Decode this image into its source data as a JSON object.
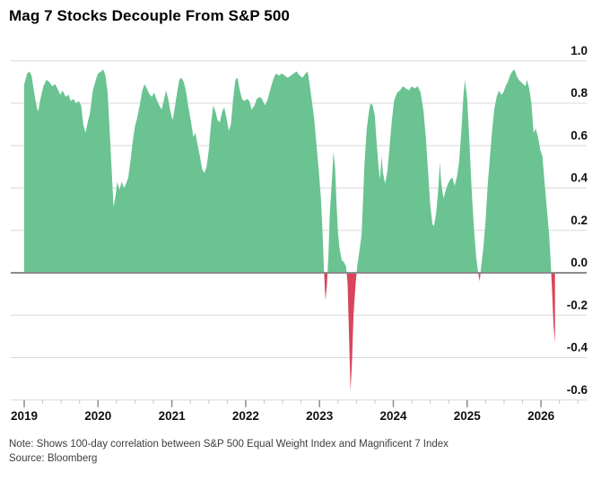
{
  "header": {
    "title": "Mag 7 Stocks Decouple From S&P 500"
  },
  "footer": {
    "note": "Note: Shows 100-day correlation between S&P 500 Equal Weight Index and Magnificent 7 Index",
    "source": "Source: Bloomberg"
  },
  "colors": {
    "positive_fill": "#6ac391",
    "negative_fill": "#d9455a",
    "gridline": "#d9d9d9",
    "zero_line": "#8b8b8b",
    "tick_major": "#8b8b8b",
    "tick_minor": "#c4c4c4",
    "tick_label": "#111111",
    "background": "#ffffff"
  },
  "chart_data": {
    "type": "area",
    "title": "Mag 7 Stocks Decouple From S&P 500",
    "series_name": "100-day correlation between S&P 500 Equal Weight Index and Magnificent 7 Index",
    "xlabel": "",
    "ylabel": "",
    "grid": true,
    "legend_position": "none",
    "ylim": [
      -0.6,
      1.0
    ],
    "xlim": [
      2019,
      2026.55
    ],
    "y_ticks": [
      1.0,
      0.8,
      0.6,
      0.4,
      0.2,
      0.0,
      -0.2,
      -0.4,
      -0.6
    ],
    "x_ticks": [
      2019,
      2020,
      2021,
      2022,
      2023,
      2024,
      2025,
      2026
    ],
    "x_minor_tick_step": 0.25,
    "points": [
      [
        2019.0,
        0.89
      ],
      [
        2019.04,
        0.94
      ],
      [
        2019.07,
        0.95
      ],
      [
        2019.1,
        0.93
      ],
      [
        2019.13,
        0.86
      ],
      [
        2019.17,
        0.78
      ],
      [
        2019.19,
        0.76
      ],
      [
        2019.22,
        0.82
      ],
      [
        2019.26,
        0.88
      ],
      [
        2019.3,
        0.91
      ],
      [
        2019.34,
        0.9
      ],
      [
        2019.38,
        0.88
      ],
      [
        2019.42,
        0.89
      ],
      [
        2019.45,
        0.87
      ],
      [
        2019.49,
        0.84
      ],
      [
        2019.52,
        0.86
      ],
      [
        2019.56,
        0.83
      ],
      [
        2019.6,
        0.84
      ],
      [
        2019.63,
        0.81
      ],
      [
        2019.67,
        0.82
      ],
      [
        2019.7,
        0.8
      ],
      [
        2019.74,
        0.81
      ],
      [
        2019.77,
        0.79
      ],
      [
        2019.8,
        0.7
      ],
      [
        2019.83,
        0.66
      ],
      [
        2019.86,
        0.71
      ],
      [
        2019.89,
        0.75
      ],
      [
        2019.93,
        0.86
      ],
      [
        2019.97,
        0.91
      ],
      [
        2020.0,
        0.94
      ],
      [
        2020.04,
        0.95
      ],
      [
        2020.07,
        0.96
      ],
      [
        2020.1,
        0.93
      ],
      [
        2020.13,
        0.85
      ],
      [
        2020.16,
        0.65
      ],
      [
        2020.19,
        0.45
      ],
      [
        2020.21,
        0.31
      ],
      [
        2020.24,
        0.37
      ],
      [
        2020.26,
        0.43
      ],
      [
        2020.29,
        0.39
      ],
      [
        2020.32,
        0.43
      ],
      [
        2020.35,
        0.4
      ],
      [
        2020.38,
        0.42
      ],
      [
        2020.41,
        0.45
      ],
      [
        2020.44,
        0.53
      ],
      [
        2020.47,
        0.62
      ],
      [
        2020.5,
        0.69
      ],
      [
        2020.53,
        0.73
      ],
      [
        2020.57,
        0.8
      ],
      [
        2020.6,
        0.86
      ],
      [
        2020.63,
        0.89
      ],
      [
        2020.66,
        0.87
      ],
      [
        2020.7,
        0.84
      ],
      [
        2020.73,
        0.83
      ],
      [
        2020.76,
        0.85
      ],
      [
        2020.79,
        0.82
      ],
      [
        2020.83,
        0.79
      ],
      [
        2020.86,
        0.77
      ],
      [
        2020.89,
        0.81
      ],
      [
        2020.92,
        0.86
      ],
      [
        2020.95,
        0.82
      ],
      [
        2020.98,
        0.76
      ],
      [
        2021.01,
        0.72
      ],
      [
        2021.04,
        0.78
      ],
      [
        2021.07,
        0.85
      ],
      [
        2021.1,
        0.91
      ],
      [
        2021.13,
        0.92
      ],
      [
        2021.16,
        0.9
      ],
      [
        2021.19,
        0.86
      ],
      [
        2021.22,
        0.79
      ],
      [
        2021.26,
        0.71
      ],
      [
        2021.29,
        0.64
      ],
      [
        2021.32,
        0.66
      ],
      [
        2021.35,
        0.6
      ],
      [
        2021.38,
        0.55
      ],
      [
        2021.41,
        0.49
      ],
      [
        2021.44,
        0.47
      ],
      [
        2021.47,
        0.5
      ],
      [
        2021.5,
        0.58
      ],
      [
        2021.53,
        0.7
      ],
      [
        2021.56,
        0.79
      ],
      [
        2021.59,
        0.76
      ],
      [
        2021.62,
        0.72
      ],
      [
        2021.65,
        0.71
      ],
      [
        2021.68,
        0.76
      ],
      [
        2021.71,
        0.78
      ],
      [
        2021.74,
        0.73
      ],
      [
        2021.77,
        0.67
      ],
      [
        2021.8,
        0.7
      ],
      [
        2021.83,
        0.82
      ],
      [
        2021.86,
        0.91
      ],
      [
        2021.89,
        0.92
      ],
      [
        2021.92,
        0.86
      ],
      [
        2021.95,
        0.82
      ],
      [
        2021.98,
        0.81
      ],
      [
        2022.02,
        0.82
      ],
      [
        2022.05,
        0.81
      ],
      [
        2022.08,
        0.77
      ],
      [
        2022.12,
        0.79
      ],
      [
        2022.15,
        0.82
      ],
      [
        2022.19,
        0.83
      ],
      [
        2022.22,
        0.82
      ],
      [
        2022.26,
        0.79
      ],
      [
        2022.29,
        0.81
      ],
      [
        2022.33,
        0.86
      ],
      [
        2022.37,
        0.91
      ],
      [
        2022.41,
        0.94
      ],
      [
        2022.45,
        0.93
      ],
      [
        2022.49,
        0.94
      ],
      [
        2022.53,
        0.93
      ],
      [
        2022.57,
        0.92
      ],
      [
        2022.61,
        0.93
      ],
      [
        2022.65,
        0.94
      ],
      [
        2022.69,
        0.95
      ],
      [
        2022.73,
        0.93
      ],
      [
        2022.77,
        0.92
      ],
      [
        2022.81,
        0.94
      ],
      [
        2022.84,
        0.95
      ],
      [
        2022.87,
        0.88
      ],
      [
        2022.9,
        0.8
      ],
      [
        2022.93,
        0.72
      ],
      [
        2022.96,
        0.6
      ],
      [
        2022.99,
        0.48
      ],
      [
        2023.02,
        0.35
      ],
      [
        2023.04,
        0.2
      ],
      [
        2023.06,
        0.02
      ],
      [
        2023.08,
        -0.13
      ],
      [
        2023.1,
        -0.06
      ],
      [
        2023.12,
        0.08
      ],
      [
        2023.14,
        0.28
      ],
      [
        2023.17,
        0.45
      ],
      [
        2023.19,
        0.57
      ],
      [
        2023.21,
        0.5
      ],
      [
        2023.23,
        0.33
      ],
      [
        2023.25,
        0.19
      ],
      [
        2023.27,
        0.12
      ],
      [
        2023.3,
        0.06
      ],
      [
        2023.33,
        0.05
      ],
      [
        2023.36,
        0.03
      ],
      [
        2023.38,
        -0.05
      ],
      [
        2023.4,
        -0.3
      ],
      [
        2023.42,
        -0.56
      ],
      [
        2023.44,
        -0.42
      ],
      [
        2023.46,
        -0.2
      ],
      [
        2023.49,
        -0.05
      ],
      [
        2023.51,
        0.03
      ],
      [
        2023.54,
        0.1
      ],
      [
        2023.57,
        0.18
      ],
      [
        2023.59,
        0.35
      ],
      [
        2023.61,
        0.52
      ],
      [
        2023.64,
        0.68
      ],
      [
        2023.67,
        0.76
      ],
      [
        2023.69,
        0.8
      ],
      [
        2023.72,
        0.79
      ],
      [
        2023.75,
        0.74
      ],
      [
        2023.77,
        0.63
      ],
      [
        2023.8,
        0.5
      ],
      [
        2023.82,
        0.44
      ],
      [
        2023.84,
        0.55
      ],
      [
        2023.86,
        0.47
      ],
      [
        2023.89,
        0.42
      ],
      [
        2023.92,
        0.48
      ],
      [
        2023.95,
        0.6
      ],
      [
        2023.98,
        0.72
      ],
      [
        2024.01,
        0.81
      ],
      [
        2024.05,
        0.85
      ],
      [
        2024.09,
        0.86
      ],
      [
        2024.13,
        0.88
      ],
      [
        2024.17,
        0.87
      ],
      [
        2024.21,
        0.86
      ],
      [
        2024.25,
        0.88
      ],
      [
        2024.29,
        0.87
      ],
      [
        2024.33,
        0.88
      ],
      [
        2024.37,
        0.85
      ],
      [
        2024.41,
        0.76
      ],
      [
        2024.44,
        0.64
      ],
      [
        2024.47,
        0.48
      ],
      [
        2024.5,
        0.32
      ],
      [
        2024.53,
        0.23
      ],
      [
        2024.55,
        0.22
      ],
      [
        2024.58,
        0.28
      ],
      [
        2024.61,
        0.4
      ],
      [
        2024.63,
        0.52
      ],
      [
        2024.65,
        0.42
      ],
      [
        2024.68,
        0.35
      ],
      [
        2024.71,
        0.39
      ],
      [
        2024.74,
        0.42
      ],
      [
        2024.77,
        0.44
      ],
      [
        2024.8,
        0.45
      ],
      [
        2024.83,
        0.41
      ],
      [
        2024.86,
        0.45
      ],
      [
        2024.89,
        0.52
      ],
      [
        2024.92,
        0.66
      ],
      [
        2024.95,
        0.84
      ],
      [
        2024.97,
        0.91
      ],
      [
        2025.0,
        0.82
      ],
      [
        2025.03,
        0.62
      ],
      [
        2025.06,
        0.4
      ],
      [
        2025.09,
        0.22
      ],
      [
        2025.12,
        0.08
      ],
      [
        2025.15,
        0.0
      ],
      [
        2025.17,
        -0.04
      ],
      [
        2025.19,
        0.03
      ],
      [
        2025.22,
        0.12
      ],
      [
        2025.25,
        0.25
      ],
      [
        2025.28,
        0.42
      ],
      [
        2025.31,
        0.55
      ],
      [
        2025.34,
        0.68
      ],
      [
        2025.37,
        0.78
      ],
      [
        2025.4,
        0.83
      ],
      [
        2025.43,
        0.86
      ],
      [
        2025.46,
        0.84
      ],
      [
        2025.49,
        0.85
      ],
      [
        2025.52,
        0.88
      ],
      [
        2025.55,
        0.9
      ],
      [
        2025.58,
        0.93
      ],
      [
        2025.61,
        0.95
      ],
      [
        2025.64,
        0.96
      ],
      [
        2025.67,
        0.93
      ],
      [
        2025.7,
        0.91
      ],
      [
        2025.73,
        0.9
      ],
      [
        2025.76,
        0.89
      ],
      [
        2025.79,
        0.88
      ],
      [
        2025.81,
        0.91
      ],
      [
        2025.84,
        0.87
      ],
      [
        2025.87,
        0.8
      ],
      [
        2025.9,
        0.66
      ],
      [
        2025.93,
        0.68
      ],
      [
        2025.96,
        0.64
      ],
      [
        2025.99,
        0.58
      ],
      [
        2026.02,
        0.55
      ],
      [
        2026.05,
        0.42
      ],
      [
        2026.08,
        0.3
      ],
      [
        2026.11,
        0.18
      ],
      [
        2026.13,
        0.06
      ],
      [
        2026.15,
        -0.08
      ],
      [
        2026.17,
        -0.25
      ],
      [
        2026.19,
        -0.33
      ]
    ]
  }
}
